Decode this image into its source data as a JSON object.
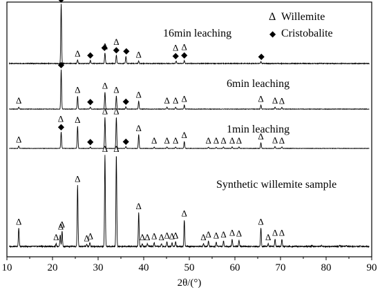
{
  "chart_data": {
    "type": "line",
    "title": "",
    "xlabel": "2θ/(°)",
    "ylabel": "",
    "xlim": [
      10,
      90
    ],
    "x_ticks": [
      10,
      20,
      30,
      40,
      50,
      60,
      70,
      80,
      90
    ],
    "y_ticks_shown": false,
    "grid": false,
    "legend_position": "top-right",
    "legend": [
      {
        "symbol": "Δ",
        "label": "Willemite"
      },
      {
        "symbol": "◆",
        "label": "Cristobalite"
      }
    ],
    "series": [
      {
        "name": "16min leaching",
        "peaks": [
          {
            "x": 21.9,
            "h": 1.0
          },
          {
            "x": 25.5,
            "h": 0.06
          },
          {
            "x": 28.3,
            "h": 0.05
          },
          {
            "x": 31.5,
            "h": 0.18
          },
          {
            "x": 34.0,
            "h": 0.14
          },
          {
            "x": 36.1,
            "h": 0.12
          },
          {
            "x": 38.9,
            "h": 0.04
          },
          {
            "x": 47.1,
            "h": 0.04
          },
          {
            "x": 48.9,
            "h": 0.05
          },
          {
            "x": 65.7,
            "h": 0.03
          }
        ],
        "willemite_markers": [
          25.5,
          31.5,
          34.0,
          38.9,
          47.0,
          48.9
        ],
        "cristobalite_markers": [
          21.9,
          28.3,
          31.4,
          34.0,
          36.2,
          47.0,
          48.9,
          65.8
        ]
      },
      {
        "name": "6min leaching",
        "peaks": [
          {
            "x": 12.6,
            "h": 0.05
          },
          {
            "x": 21.9,
            "h": 1.0
          },
          {
            "x": 25.5,
            "h": 0.33
          },
          {
            "x": 28.3,
            "h": 0.05
          },
          {
            "x": 31.5,
            "h": 0.43
          },
          {
            "x": 34.0,
            "h": 0.33
          },
          {
            "x": 36.1,
            "h": 0.06
          },
          {
            "x": 38.9,
            "h": 0.2
          },
          {
            "x": 45.1,
            "h": 0.05
          },
          {
            "x": 47.0,
            "h": 0.05
          },
          {
            "x": 48.9,
            "h": 0.1
          },
          {
            "x": 65.7,
            "h": 0.1
          },
          {
            "x": 68.8,
            "h": 0.05
          },
          {
            "x": 70.3,
            "h": 0.04
          }
        ],
        "willemite_markers": [
          12.6,
          25.5,
          31.5,
          34.0,
          38.9,
          45.1,
          47.0,
          48.9,
          65.7,
          68.8,
          70.3
        ],
        "cristobalite_markers": [
          21.9,
          28.3,
          36.1
        ]
      },
      {
        "name": "1min leaching",
        "peaks": [
          {
            "x": 12.6,
            "h": 0.08
          },
          {
            "x": 21.9,
            "h": 0.53
          },
          {
            "x": 25.5,
            "h": 0.72
          },
          {
            "x": 28.3,
            "h": 0.04
          },
          {
            "x": 31.5,
            "h": 1.0
          },
          {
            "x": 34.0,
            "h": 1.0
          },
          {
            "x": 36.1,
            "h": 0.06
          },
          {
            "x": 38.9,
            "h": 0.45
          },
          {
            "x": 42.3,
            "h": 0.04
          },
          {
            "x": 45.1,
            "h": 0.05
          },
          {
            "x": 47.0,
            "h": 0.05
          },
          {
            "x": 48.9,
            "h": 0.22
          },
          {
            "x": 54.2,
            "h": 0.04
          },
          {
            "x": 55.9,
            "h": 0.04
          },
          {
            "x": 57.5,
            "h": 0.05
          },
          {
            "x": 59.4,
            "h": 0.05
          },
          {
            "x": 60.9,
            "h": 0.05
          },
          {
            "x": 65.7,
            "h": 0.18
          },
          {
            "x": 68.8,
            "h": 0.06
          },
          {
            "x": 70.3,
            "h": 0.05
          }
        ],
        "willemite_markers": [
          12.6,
          21.8,
          25.5,
          31.5,
          34.0,
          38.9,
          42.3,
          45.1,
          47.0,
          48.9,
          54.2,
          55.9,
          57.5,
          59.4,
          60.9,
          65.7,
          68.8,
          70.3
        ],
        "cristobalite_markers": [
          21.9,
          28.3,
          36.1
        ]
      },
      {
        "name": "Synthetic willemite sample",
        "peaks": [
          {
            "x": 12.6,
            "h": 0.2
          },
          {
            "x": 20.8,
            "h": 0.03
          },
          {
            "x": 21.7,
            "h": 0.13
          },
          {
            "x": 22.1,
            "h": 0.17
          },
          {
            "x": 25.5,
            "h": 0.67
          },
          {
            "x": 27.5,
            "h": 0.02
          },
          {
            "x": 28.2,
            "h": 0.04
          },
          {
            "x": 31.5,
            "h": 1.0
          },
          {
            "x": 34.0,
            "h": 1.0
          },
          {
            "x": 38.9,
            "h": 0.37
          },
          {
            "x": 39.7,
            "h": 0.03
          },
          {
            "x": 40.8,
            "h": 0.03
          },
          {
            "x": 42.3,
            "h": 0.04
          },
          {
            "x": 43.9,
            "h": 0.03
          },
          {
            "x": 45.1,
            "h": 0.05
          },
          {
            "x": 46.2,
            "h": 0.04
          },
          {
            "x": 47.0,
            "h": 0.05
          },
          {
            "x": 48.9,
            "h": 0.29
          },
          {
            "x": 53.1,
            "h": 0.03
          },
          {
            "x": 54.2,
            "h": 0.06
          },
          {
            "x": 55.9,
            "h": 0.05
          },
          {
            "x": 57.5,
            "h": 0.06
          },
          {
            "x": 59.4,
            "h": 0.08
          },
          {
            "x": 60.9,
            "h": 0.07
          },
          {
            "x": 65.7,
            "h": 0.2
          },
          {
            "x": 67.3,
            "h": 0.03
          },
          {
            "x": 68.8,
            "h": 0.08
          },
          {
            "x": 70.3,
            "h": 0.08
          },
          {
            "x": 76.9,
            "h": 0.01
          },
          {
            "x": 79.0,
            "h": 0.01
          },
          {
            "x": 83.0,
            "h": 0.01
          },
          {
            "x": 84.5,
            "h": 0.01
          },
          {
            "x": 87.5,
            "h": 0.01
          }
        ],
        "willemite_markers": [
          12.6,
          20.8,
          21.8,
          22.1,
          25.5,
          27.5,
          28.3,
          31.5,
          34.0,
          38.9,
          39.7,
          40.8,
          42.3,
          43.9,
          45.1,
          46.2,
          47.0,
          48.9,
          53.1,
          54.2,
          55.9,
          57.5,
          59.4,
          60.9,
          65.7,
          67.3,
          68.8,
          70.3
        ],
        "cristobalite_markers": []
      }
    ]
  }
}
